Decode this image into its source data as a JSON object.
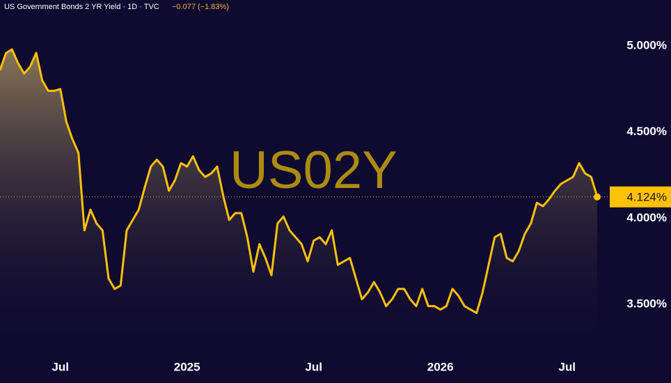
{
  "chart_data": {
    "type": "line",
    "title": "US Government Bonds 2 YR Yield · 1D · TVC",
    "change": "−0.077 (−1.83%)",
    "watermark": "US02Y",
    "color": "#ffc107",
    "categories": [
      null,
      null,
      null,
      null,
      null,
      null,
      null,
      null,
      null,
      null,
      "Jul",
      null,
      null,
      null,
      null,
      null,
      null,
      null,
      null,
      null,
      null,
      null,
      null,
      null,
      null,
      null,
      null,
      null,
      null,
      null,
      null,
      "2025",
      null,
      null,
      null,
      null,
      null,
      null,
      null,
      null,
      null,
      null,
      null,
      null,
      null,
      null,
      null,
      null,
      null,
      null,
      null,
      null,
      "Jul",
      null,
      null,
      null,
      null,
      null,
      null,
      null,
      null,
      null,
      null,
      null,
      null,
      null,
      null,
      null,
      null,
      null,
      null,
      null,
      null,
      "2026",
      null,
      null,
      null,
      null,
      null,
      null,
      null,
      null,
      null,
      null,
      null,
      null,
      null,
      null,
      null,
      null,
      null,
      null,
      null,
      null,
      "Jul",
      null,
      null,
      null,
      null,
      null
    ],
    "values": [
      4.86,
      4.96,
      4.98,
      4.9,
      4.84,
      4.88,
      4.96,
      4.8,
      4.74,
      4.74,
      4.75,
      4.56,
      4.46,
      4.38,
      3.93,
      4.05,
      3.97,
      3.93,
      3.65,
      3.59,
      3.61,
      3.93,
      3.99,
      4.05,
      4.18,
      4.3,
      4.34,
      4.3,
      4.16,
      4.22,
      4.32,
      4.3,
      4.36,
      4.28,
      4.24,
      4.26,
      4.3,
      4.13,
      3.99,
      4.03,
      4.03,
      3.89,
      3.69,
      3.85,
      3.77,
      3.67,
      3.97,
      4.01,
      3.93,
      3.89,
      3.85,
      3.75,
      3.87,
      3.89,
      3.85,
      3.93,
      3.73,
      3.75,
      3.77,
      3.65,
      3.53,
      3.57,
      3.63,
      3.57,
      3.49,
      3.53,
      3.59,
      3.59,
      3.53,
      3.49,
      3.59,
      3.49,
      3.49,
      3.47,
      3.49,
      3.59,
      3.55,
      3.49,
      3.47,
      3.45,
      3.57,
      3.73,
      3.89,
      3.91,
      3.77,
      3.75,
      3.81,
      3.91,
      3.97,
      4.09,
      4.07,
      4.11,
      4.16,
      4.2,
      4.22,
      4.24,
      4.32,
      4.26,
      4.24,
      4.124
    ],
    "value_labels": [
      null,
      null,
      null,
      null,
      null,
      null,
      null,
      null,
      null,
      null,
      null,
      null,
      null,
      null,
      null,
      null,
      null,
      null,
      null,
      null,
      null,
      null,
      null,
      null,
      null,
      null,
      null,
      null,
      null,
      null,
      null,
      null,
      null,
      null,
      null,
      null,
      null,
      null,
      null,
      null,
      null,
      null,
      null,
      null,
      null,
      null,
      null,
      null,
      null,
      null,
      null,
      null,
      null,
      null,
      null,
      null,
      null,
      null,
      null,
      null,
      null,
      null,
      null,
      null,
      null,
      null,
      null,
      null,
      null,
      null,
      null,
      null,
      null,
      null,
      null,
      null,
      null,
      null,
      null,
      null,
      null,
      null,
      null,
      null,
      null,
      null,
      null,
      null,
      null,
      null,
      null,
      null,
      null,
      null,
      null,
      null,
      null,
      null,
      null,
      "4.124%"
    ],
    "ylim": [
      3.246,
      5.267
    ],
    "yticks": [
      {
        "value": 3.5,
        "label": "3.500%"
      },
      {
        "value": 4.0,
        "label": "4.000%"
      },
      {
        "value": 4.5,
        "label": "4.500%"
      },
      {
        "value": 5.0,
        "label": "5.000%"
      }
    ]
  }
}
